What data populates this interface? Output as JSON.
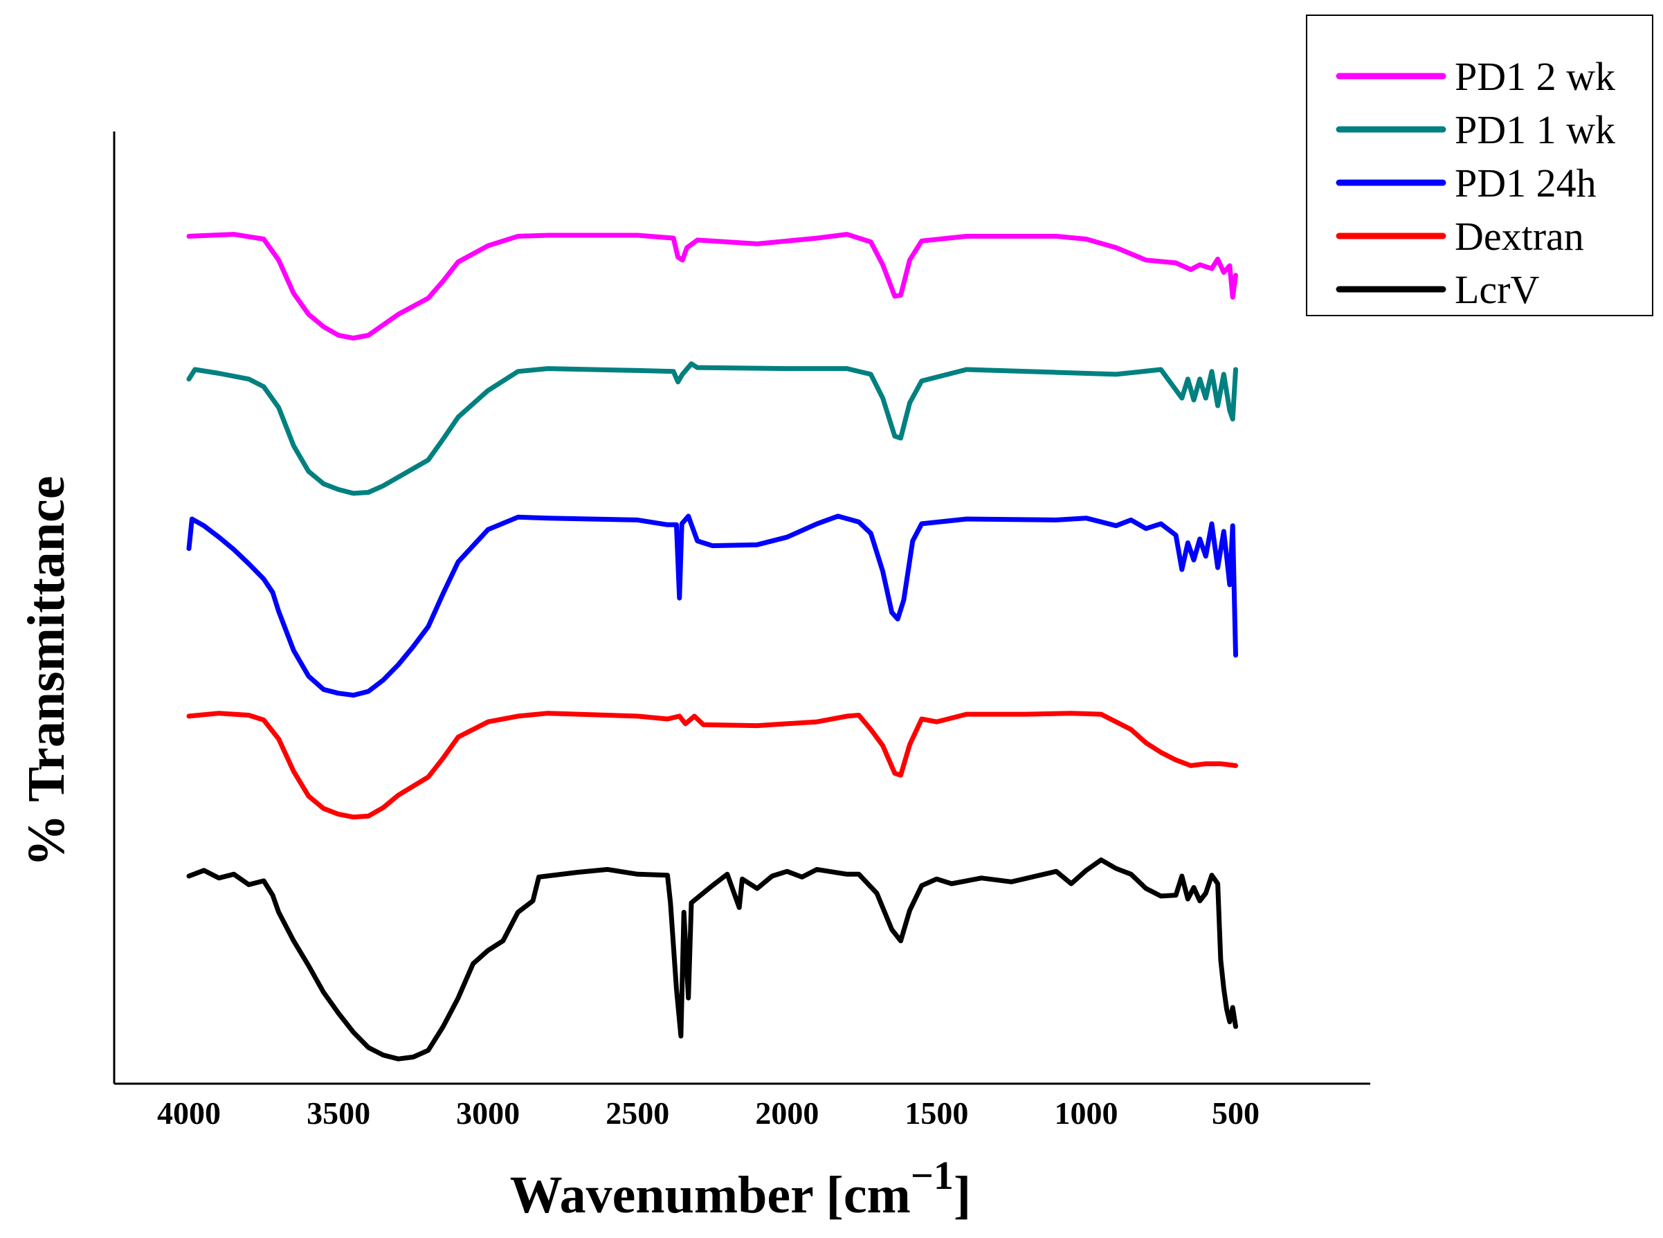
{
  "chart_data": {
    "type": "line",
    "title": "",
    "xlabel": "Wavenumber [cm",
    "xlabel_sup": "−1",
    "xlabel_close": "]",
    "ylabel": "% Transmittance",
    "xlim": [
      4250,
      50
    ],
    "ylim": [
      0,
      100
    ],
    "xticks": [
      4000,
      3500,
      3000,
      2500,
      2000,
      1500,
      1000,
      500
    ],
    "xtick_labels": [
      "4000",
      "3500",
      "3000",
      "2500",
      "2000",
      "1500",
      "1000",
      "500"
    ],
    "y_ticks_shown": false,
    "grid": false,
    "legend_position": "top-right",
    "series": [
      {
        "name": "PD1 2 wk",
        "color": "#ff00ff",
        "points": [
          [
            4000,
            89.0
          ],
          [
            3850,
            89.2
          ],
          [
            3750,
            88.7
          ],
          [
            3700,
            86.5
          ],
          [
            3650,
            83.0
          ],
          [
            3600,
            80.8
          ],
          [
            3550,
            79.5
          ],
          [
            3500,
            78.6
          ],
          [
            3450,
            78.3
          ],
          [
            3400,
            78.6
          ],
          [
            3350,
            79.7
          ],
          [
            3300,
            80.8
          ],
          [
            3200,
            82.5
          ],
          [
            3150,
            84.3
          ],
          [
            3100,
            86.3
          ],
          [
            3000,
            88.0
          ],
          [
            2900,
            89.0
          ],
          [
            2800,
            89.1
          ],
          [
            2500,
            89.1
          ],
          [
            2380,
            88.8
          ],
          [
            2365,
            86.8
          ],
          [
            2350,
            86.5
          ],
          [
            2335,
            87.8
          ],
          [
            2300,
            88.6
          ],
          [
            2100,
            88.2
          ],
          [
            1900,
            88.8
          ],
          [
            1800,
            89.2
          ],
          [
            1720,
            88.4
          ],
          [
            1680,
            86.0
          ],
          [
            1640,
            82.7
          ],
          [
            1620,
            82.8
          ],
          [
            1590,
            86.5
          ],
          [
            1550,
            88.5
          ],
          [
            1400,
            89.0
          ],
          [
            1100,
            89.0
          ],
          [
            1000,
            88.7
          ],
          [
            900,
            87.8
          ],
          [
            800,
            86.5
          ],
          [
            700,
            86.2
          ],
          [
            650,
            85.5
          ],
          [
            620,
            86.0
          ],
          [
            580,
            85.6
          ],
          [
            560,
            86.6
          ],
          [
            540,
            85.2
          ],
          [
            520,
            85.9
          ],
          [
            510,
            82.6
          ],
          [
            500,
            84.9
          ]
        ]
      },
      {
        "name": "PD1 1 wk",
        "color": "#008080",
        "points": [
          [
            4000,
            74.0
          ],
          [
            3980,
            75.0
          ],
          [
            3900,
            74.6
          ],
          [
            3800,
            74.0
          ],
          [
            3750,
            73.2
          ],
          [
            3700,
            71.0
          ],
          [
            3650,
            67.0
          ],
          [
            3600,
            64.3
          ],
          [
            3550,
            63.0
          ],
          [
            3500,
            62.4
          ],
          [
            3450,
            62.0
          ],
          [
            3400,
            62.1
          ],
          [
            3350,
            62.8
          ],
          [
            3300,
            63.7
          ],
          [
            3200,
            65.5
          ],
          [
            3150,
            67.7
          ],
          [
            3100,
            70.0
          ],
          [
            3000,
            72.8
          ],
          [
            2900,
            74.8
          ],
          [
            2800,
            75.1
          ],
          [
            2500,
            74.9
          ],
          [
            2380,
            74.8
          ],
          [
            2365,
            73.7
          ],
          [
            2350,
            74.5
          ],
          [
            2320,
            75.6
          ],
          [
            2300,
            75.2
          ],
          [
            2000,
            75.1
          ],
          [
            1800,
            75.1
          ],
          [
            1720,
            74.5
          ],
          [
            1680,
            72.0
          ],
          [
            1640,
            68.0
          ],
          [
            1620,
            67.8
          ],
          [
            1590,
            71.5
          ],
          [
            1550,
            73.8
          ],
          [
            1400,
            75.0
          ],
          [
            1100,
            74.7
          ],
          [
            900,
            74.5
          ],
          [
            750,
            75.0
          ],
          [
            680,
            72.0
          ],
          [
            660,
            74.0
          ],
          [
            640,
            71.8
          ],
          [
            620,
            74.0
          ],
          [
            600,
            72.0
          ],
          [
            580,
            74.8
          ],
          [
            560,
            71.2
          ],
          [
            540,
            74.5
          ],
          [
            520,
            70.7
          ],
          [
            510,
            69.8
          ],
          [
            500,
            75.0
          ]
        ]
      },
      {
        "name": "PD1 24h",
        "color": "#0000ff",
        "points": [
          [
            4000,
            56.2
          ],
          [
            3990,
            59.3
          ],
          [
            3950,
            58.6
          ],
          [
            3900,
            57.4
          ],
          [
            3850,
            56.1
          ],
          [
            3800,
            54.6
          ],
          [
            3750,
            53.0
          ],
          [
            3720,
            51.6
          ],
          [
            3700,
            49.6
          ],
          [
            3650,
            45.5
          ],
          [
            3600,
            42.8
          ],
          [
            3550,
            41.4
          ],
          [
            3500,
            41.0
          ],
          [
            3450,
            40.8
          ],
          [
            3400,
            41.2
          ],
          [
            3350,
            42.4
          ],
          [
            3300,
            44.0
          ],
          [
            3250,
            45.9
          ],
          [
            3200,
            48.0
          ],
          [
            3150,
            51.5
          ],
          [
            3100,
            54.8
          ],
          [
            3000,
            58.2
          ],
          [
            2900,
            59.5
          ],
          [
            2800,
            59.4
          ],
          [
            2500,
            59.2
          ],
          [
            2400,
            58.7
          ],
          [
            2370,
            58.7
          ],
          [
            2360,
            51.0
          ],
          [
            2352,
            58.8
          ],
          [
            2330,
            59.6
          ],
          [
            2300,
            57.0
          ],
          [
            2250,
            56.5
          ],
          [
            2100,
            56.6
          ],
          [
            2000,
            57.4
          ],
          [
            1900,
            58.8
          ],
          [
            1830,
            59.6
          ],
          [
            1760,
            59.0
          ],
          [
            1720,
            57.8
          ],
          [
            1680,
            53.8
          ],
          [
            1650,
            49.5
          ],
          [
            1630,
            48.8
          ],
          [
            1610,
            50.8
          ],
          [
            1580,
            57.0
          ],
          [
            1550,
            58.8
          ],
          [
            1400,
            59.3
          ],
          [
            1100,
            59.2
          ],
          [
            1000,
            59.4
          ],
          [
            900,
            58.6
          ],
          [
            850,
            59.2
          ],
          [
            800,
            58.3
          ],
          [
            750,
            58.8
          ],
          [
            700,
            57.6
          ],
          [
            680,
            54.0
          ],
          [
            660,
            56.8
          ],
          [
            640,
            55.0
          ],
          [
            620,
            57.2
          ],
          [
            600,
            55.4
          ],
          [
            580,
            58.8
          ],
          [
            560,
            54.2
          ],
          [
            540,
            58.0
          ],
          [
            530,
            55.3
          ],
          [
            520,
            52.4
          ],
          [
            510,
            58.6
          ],
          [
            500,
            45.0
          ]
        ]
      },
      {
        "name": "Dextran",
        "color": "#ff0000",
        "points": [
          [
            4000,
            38.6
          ],
          [
            3900,
            38.9
          ],
          [
            3800,
            38.7
          ],
          [
            3750,
            38.2
          ],
          [
            3700,
            36.2
          ],
          [
            3650,
            32.8
          ],
          [
            3600,
            30.2
          ],
          [
            3550,
            28.9
          ],
          [
            3500,
            28.3
          ],
          [
            3450,
            28.0
          ],
          [
            3400,
            28.1
          ],
          [
            3350,
            29.0
          ],
          [
            3300,
            30.3
          ],
          [
            3200,
            32.2
          ],
          [
            3150,
            34.2
          ],
          [
            3100,
            36.4
          ],
          [
            3000,
            38.0
          ],
          [
            2900,
            38.6
          ],
          [
            2800,
            38.9
          ],
          [
            2500,
            38.6
          ],
          [
            2400,
            38.3
          ],
          [
            2360,
            38.6
          ],
          [
            2340,
            37.8
          ],
          [
            2310,
            38.6
          ],
          [
            2280,
            37.7
          ],
          [
            2100,
            37.6
          ],
          [
            1900,
            38.0
          ],
          [
            1800,
            38.6
          ],
          [
            1760,
            38.7
          ],
          [
            1720,
            37.2
          ],
          [
            1680,
            35.5
          ],
          [
            1640,
            32.6
          ],
          [
            1620,
            32.4
          ],
          [
            1590,
            35.6
          ],
          [
            1550,
            38.3
          ],
          [
            1500,
            38.0
          ],
          [
            1400,
            38.8
          ],
          [
            1200,
            38.8
          ],
          [
            1050,
            38.9
          ],
          [
            950,
            38.8
          ],
          [
            850,
            37.2
          ],
          [
            800,
            35.8
          ],
          [
            750,
            34.8
          ],
          [
            700,
            34.0
          ],
          [
            650,
            33.4
          ],
          [
            600,
            33.6
          ],
          [
            550,
            33.6
          ],
          [
            500,
            33.4
          ]
        ]
      },
      {
        "name": "LcrV",
        "color": "#000000",
        "points": [
          [
            4000,
            21.8
          ],
          [
            3950,
            22.4
          ],
          [
            3900,
            21.6
          ],
          [
            3850,
            22.0
          ],
          [
            3800,
            20.9
          ],
          [
            3750,
            21.3
          ],
          [
            3720,
            19.8
          ],
          [
            3700,
            18.0
          ],
          [
            3650,
            15.0
          ],
          [
            3600,
            12.4
          ],
          [
            3550,
            9.6
          ],
          [
            3500,
            7.4
          ],
          [
            3450,
            5.4
          ],
          [
            3400,
            3.8
          ],
          [
            3350,
            3.0
          ],
          [
            3300,
            2.6
          ],
          [
            3250,
            2.8
          ],
          [
            3200,
            3.5
          ],
          [
            3150,
            6.0
          ],
          [
            3100,
            9.0
          ],
          [
            3050,
            12.6
          ],
          [
            3000,
            14.0
          ],
          [
            2950,
            15.0
          ],
          [
            2900,
            18.0
          ],
          [
            2850,
            19.2
          ],
          [
            2830,
            21.7
          ],
          [
            2700,
            22.2
          ],
          [
            2600,
            22.5
          ],
          [
            2500,
            22.0
          ],
          [
            2400,
            21.9
          ],
          [
            2390,
            19.0
          ],
          [
            2370,
            10.0
          ],
          [
            2355,
            5.0
          ],
          [
            2345,
            18.0
          ],
          [
            2330,
            9.0
          ],
          [
            2320,
            19.0
          ],
          [
            2250,
            20.8
          ],
          [
            2200,
            22.0
          ],
          [
            2160,
            18.5
          ],
          [
            2150,
            21.5
          ],
          [
            2100,
            20.5
          ],
          [
            2050,
            21.8
          ],
          [
            2000,
            22.3
          ],
          [
            1950,
            21.7
          ],
          [
            1900,
            22.5
          ],
          [
            1800,
            22.0
          ],
          [
            1760,
            22.0
          ],
          [
            1700,
            20.0
          ],
          [
            1650,
            16.2
          ],
          [
            1620,
            15.0
          ],
          [
            1590,
            18.2
          ],
          [
            1550,
            20.8
          ],
          [
            1500,
            21.5
          ],
          [
            1450,
            21.0
          ],
          [
            1350,
            21.6
          ],
          [
            1250,
            21.2
          ],
          [
            1100,
            22.3
          ],
          [
            1050,
            21.0
          ],
          [
            1000,
            22.4
          ],
          [
            950,
            23.5
          ],
          [
            900,
            22.6
          ],
          [
            850,
            22.0
          ],
          [
            800,
            20.5
          ],
          [
            750,
            19.7
          ],
          [
            700,
            19.8
          ],
          [
            680,
            21.8
          ],
          [
            660,
            19.4
          ],
          [
            640,
            20.6
          ],
          [
            620,
            19.2
          ],
          [
            600,
            20.0
          ],
          [
            580,
            21.9
          ],
          [
            560,
            21.0
          ],
          [
            550,
            13.0
          ],
          [
            540,
            10.0
          ],
          [
            530,
            7.8
          ],
          [
            520,
            6.5
          ],
          [
            510,
            8.0
          ],
          [
            500,
            6.0
          ]
        ]
      }
    ]
  }
}
